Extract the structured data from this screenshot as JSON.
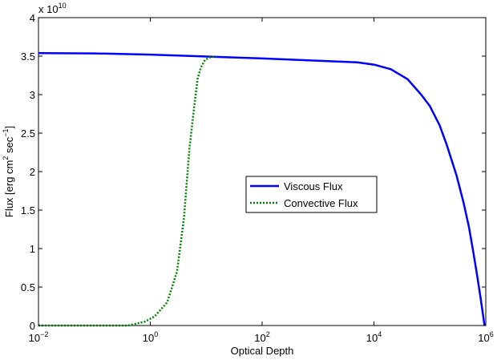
{
  "chart_data": {
    "type": "line",
    "title": "",
    "xlabel": "Optical Depth",
    "ylabel": "Flux [erg cm^2 sec^-1]",
    "ylabel_parts": {
      "base": "Flux [erg cm",
      "exp1": "2",
      "mid": " sec",
      "exp2": "−1",
      "end": "]"
    },
    "x_scale": "log",
    "xlim": [
      0.01,
      1000000
    ],
    "ylim": [
      0,
      40000000000.0
    ],
    "y_multiplier": {
      "base": "x 10",
      "exponent": "10"
    },
    "x_ticks": [
      {
        "value": 0.01,
        "base": "10",
        "exponent": "−2"
      },
      {
        "value": 1,
        "base": "10",
        "exponent": "0"
      },
      {
        "value": 100,
        "base": "10",
        "exponent": "2"
      },
      {
        "value": 10000,
        "base": "10",
        "exponent": "4"
      },
      {
        "value": 1000000,
        "base": "10",
        "exponent": "6"
      }
    ],
    "y_ticks": [
      {
        "value": 0,
        "label": "0"
      },
      {
        "value": 5000000000.0,
        "label": "0.5"
      },
      {
        "value": 10000000000.0,
        "label": "1"
      },
      {
        "value": 15000000000.0,
        "label": "1.5"
      },
      {
        "value": 20000000000.0,
        "label": "2"
      },
      {
        "value": 25000000000.0,
        "label": "2.5"
      },
      {
        "value": 30000000000.0,
        "label": "3"
      },
      {
        "value": 35000000000.0,
        "label": "3.5"
      },
      {
        "value": 40000000000.0,
        "label": "4"
      }
    ],
    "grid": false,
    "legend_position": "center",
    "series": [
      {
        "name": "Viscous Flux",
        "color": "#0000ff",
        "style": "solid",
        "x": [
          0.01,
          0.1,
          1,
          10,
          100,
          1000,
          5000,
          10000,
          20000,
          40000,
          70000,
          100000,
          150000,
          200000,
          300000,
          400000,
          500000,
          600000,
          700000,
          800000,
          900000,
          950000
        ],
        "y": [
          35400000000.0,
          35350000000.0,
          35200000000.0,
          34950000000.0,
          34700000000.0,
          34400000000.0,
          34200000000.0,
          33900000000.0,
          33300000000.0,
          32000000000.0,
          30000000000.0,
          28500000000.0,
          26000000000.0,
          23500000000.0,
          19500000000.0,
          16000000000.0,
          12800000000.0,
          9500000000.0,
          6500000000.0,
          3800000000.0,
          1200000000.0,
          0.0
        ]
      },
      {
        "name": "Convective Flux",
        "color": "#008000",
        "style": "dotted",
        "x": [
          0.01,
          0.1,
          0.4,
          0.8,
          1.2,
          2,
          3,
          4,
          5,
          6,
          7,
          8,
          9.5,
          12,
          15
        ],
        "y": [
          0,
          0,
          0,
          500000000.0,
          1200000000.0,
          3000000000.0,
          7000000000.0,
          14000000000.0,
          23000000000.0,
          28000000000.0,
          32000000000.0,
          33500000000.0,
          34500000000.0,
          34900000000.0,
          34900000000.0
        ]
      }
    ]
  }
}
